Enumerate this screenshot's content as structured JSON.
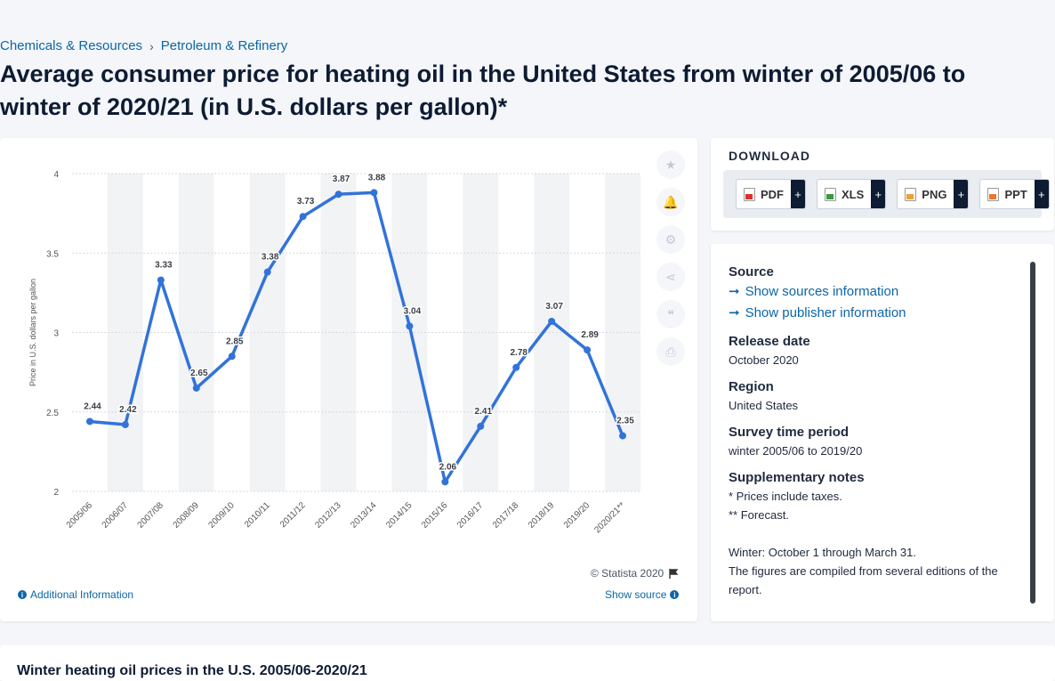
{
  "breadcrumb": {
    "item1": "Chemicals & Resources",
    "separator": "›",
    "item2": "Petroleum & Refinery"
  },
  "title": "Average consumer price for heating oil in the United States from winter of 2005/06 to winter of 2020/21 (in U.S. dollars per gallon)*",
  "chart_data": {
    "type": "line",
    "categories": [
      "2005/06",
      "2006/07",
      "2007/08",
      "2008/09",
      "2009/10",
      "2010/11",
      "2011/12",
      "2012/13",
      "2013/14",
      "2014/15",
      "2015/16",
      "2016/17",
      "2017/18",
      "2018/19",
      "2019/20",
      "2020/21**"
    ],
    "values": [
      2.44,
      2.42,
      3.33,
      2.65,
      2.85,
      3.38,
      3.73,
      3.87,
      3.88,
      3.04,
      2.06,
      2.41,
      2.78,
      3.07,
      2.89,
      2.35
    ],
    "ylabel": "Price in U.S. dollars per gallon",
    "ylim": [
      2,
      4
    ],
    "yticks": [
      2,
      2.5,
      3,
      3.5,
      4
    ],
    "grid": true,
    "alternating_column_shading": true,
    "line_color": "#3273d9"
  },
  "chart_footer": {
    "copyright": "© Statista 2020",
    "additional_info": "Additional Information",
    "show_source": "Show source"
  },
  "tools": [
    {
      "icon": "star-icon",
      "glyph": "★"
    },
    {
      "icon": "bell-icon",
      "glyph": "🔔"
    },
    {
      "icon": "gear-icon",
      "glyph": "⚙"
    },
    {
      "icon": "share-icon",
      "glyph": "⋖"
    },
    {
      "icon": "quote-icon",
      "glyph": "❝"
    },
    {
      "icon": "print-icon",
      "glyph": "⎙"
    }
  ],
  "download": {
    "title": "DOWNLOAD",
    "pdf": "PDF",
    "xls": "XLS",
    "png": "PNG",
    "ppt": "PPT",
    "plus": "+"
  },
  "details": {
    "source_head": "Source",
    "show_sources": "Show sources information",
    "show_publisher": "Show publisher information",
    "release_head": "Release date",
    "release_value": "October 2020",
    "region_head": "Region",
    "region_value": "United States",
    "survey_head": "Survey time period",
    "survey_value": "winter 2005/06 to 2019/20",
    "notes_head": "Supplementary notes",
    "note1": "* Prices include taxes.",
    "note2": "** Forecast.",
    "note3": "Winter: October 1 through March 31.",
    "note4": "The figures are compiled from several editions of the report."
  },
  "footer_title": "Winter heating oil prices in the U.S. 2005/06-2020/21"
}
